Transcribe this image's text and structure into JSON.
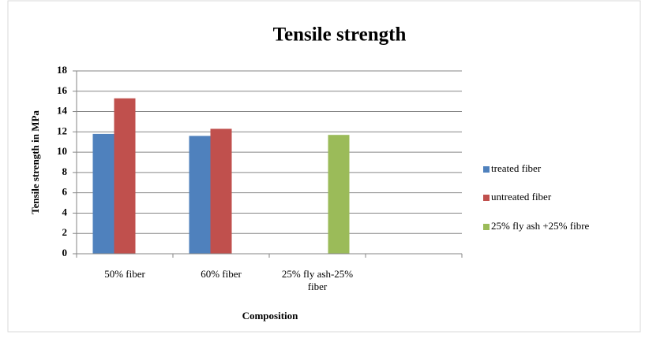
{
  "chart_data": {
    "type": "bar",
    "title": "Tensile strength",
    "y_label": "Tensile strength in MPa",
    "x_label": "Composition",
    "categories": [
      "50% fiber",
      "60% fiber",
      "25% fly ash-25% fiber"
    ],
    "series": [
      {
        "name": "treated fiber",
        "color": "#4f81bd",
        "values": [
          11.8,
          11.6,
          null
        ]
      },
      {
        "name": "untreated fiber",
        "color": "#c0504d",
        "values": [
          15.3,
          12.3,
          null
        ]
      },
      {
        "name": "25% fly ash +25% fibre",
        "color": "#9bbb59",
        "values": [
          null,
          null,
          11.7
        ]
      }
    ],
    "ylim": [
      0,
      18
    ],
    "yticks": [
      0,
      2,
      4,
      6,
      8,
      10,
      12,
      14,
      16,
      18
    ],
    "grid": true,
    "legend": "right"
  }
}
